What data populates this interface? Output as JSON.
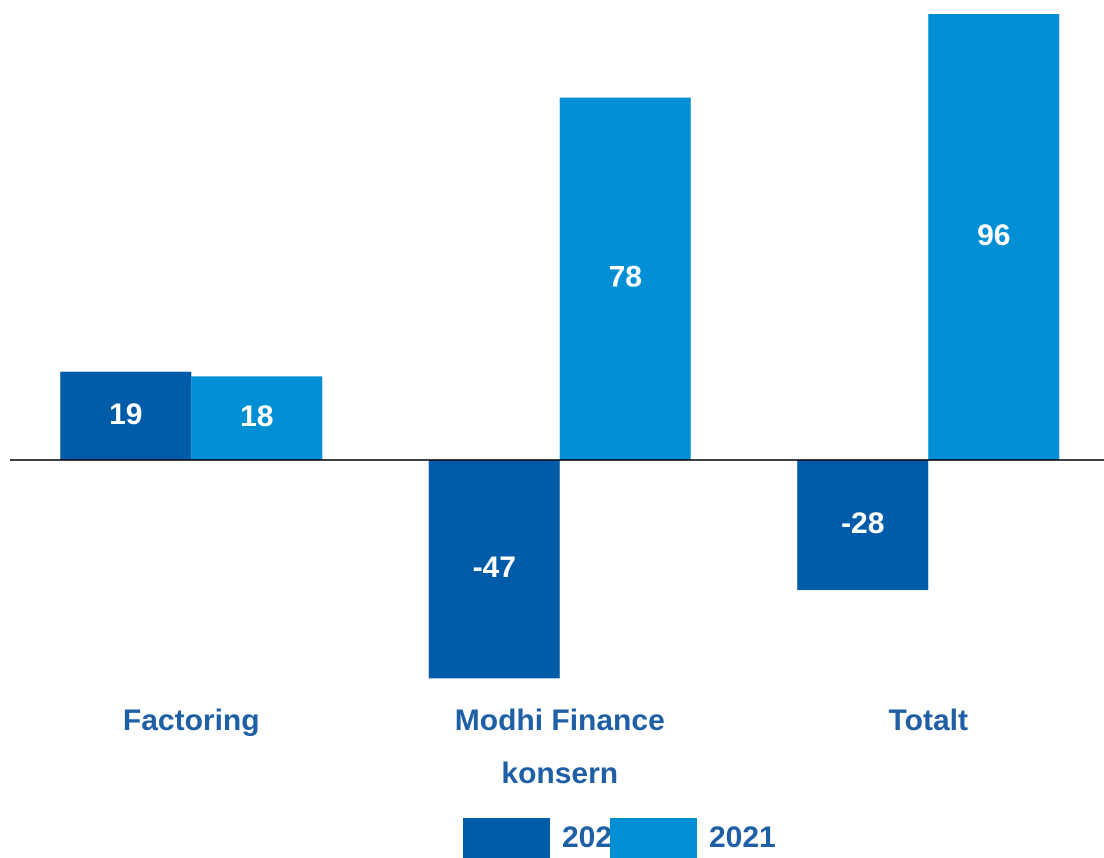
{
  "chart_data": {
    "type": "bar",
    "categories": [
      "Factoring",
      "Modhi Finance konsern",
      "Totalt"
    ],
    "series": [
      {
        "name": "2020",
        "color": "#005ca8",
        "values": [
          19,
          -47,
          -28
        ]
      },
      {
        "name": "2021",
        "color": "#008fd5",
        "values": [
          18,
          78,
          96
        ]
      }
    ],
    "legend": "bottom"
  }
}
